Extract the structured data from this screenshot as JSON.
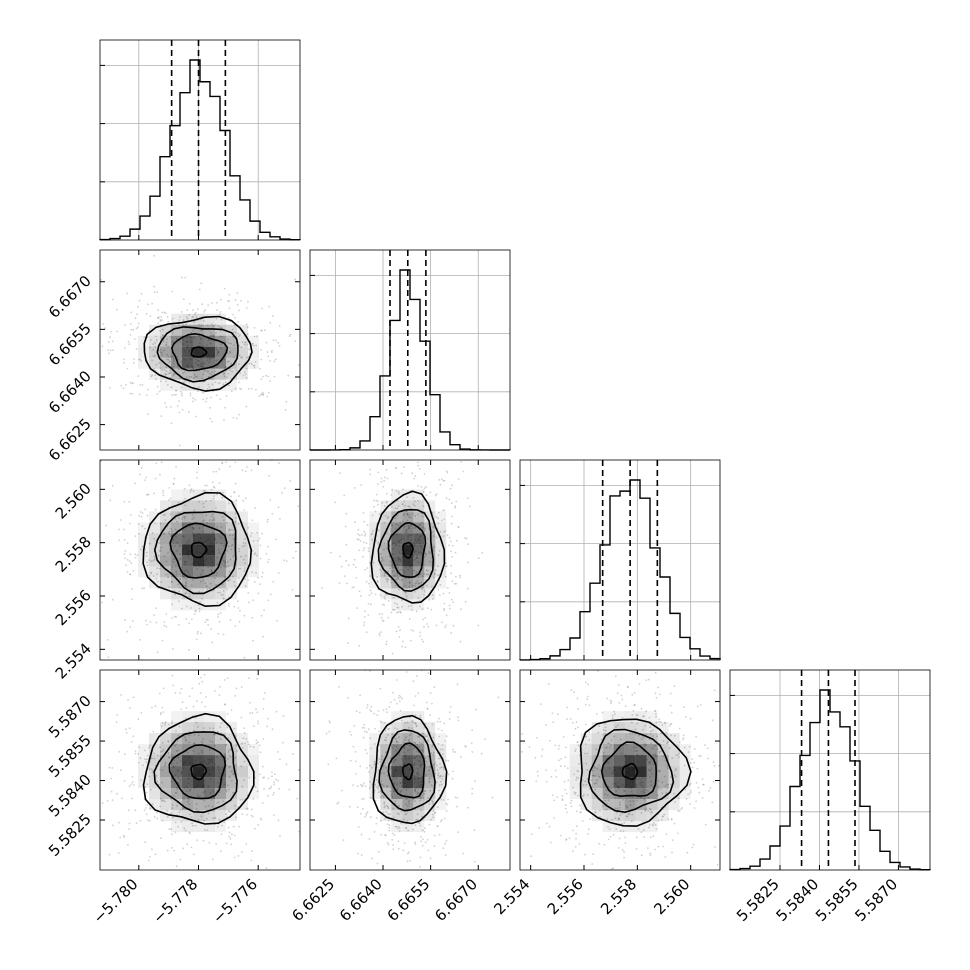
{
  "chart_data": {
    "type": "corner",
    "title": "",
    "parameters": [
      {
        "index": 0,
        "range": [
          -5.7813,
          -5.7746
        ],
        "ticks": [
          -5.78,
          -5.778,
          -5.776
        ],
        "tick_labels": [
          "−5.780",
          "−5.778",
          "−5.776"
        ],
        "quantiles": [
          -5.7789,
          -5.778,
          -5.7771
        ],
        "hist_center": -5.778,
        "hist_sd": 0.0009
      },
      {
        "index": 1,
        "range": [
          6.6617,
          6.668
        ],
        "ticks": [
          6.6625,
          6.664,
          6.6655,
          6.667
        ],
        "tick_labels": [
          "6.6625",
          "6.6640",
          "6.6655",
          "6.6670"
        ],
        "quantiles": [
          6.66422,
          6.66478,
          6.66535
        ],
        "hist_center": 6.66478,
        "hist_sd": 0.00056
      },
      {
        "index": 2,
        "range": [
          2.5536,
          2.5611
        ],
        "ticks": [
          2.554,
          2.556,
          2.558,
          2.56
        ],
        "tick_labels": [
          "2.554",
          "2.556",
          "2.558",
          "2.560"
        ],
        "quantiles": [
          2.5567,
          2.55773,
          2.55875
        ],
        "hist_center": 2.55773,
        "hist_sd": 0.00102
      },
      {
        "index": 3,
        "range": [
          5.5806,
          5.5882
        ],
        "ticks": [
          5.5825,
          5.584,
          5.5855,
          5.587
        ],
        "tick_labels": [
          "5.5825",
          "5.5840",
          "5.5855",
          "5.5870"
        ],
        "quantiles": [
          5.58332,
          5.58434,
          5.58535
        ],
        "hist_center": 5.58434,
        "hist_sd": 0.00102
      }
    ],
    "hist_bins": 20,
    "contour_levels": [
      0.5,
      1.0,
      1.5,
      2.0
    ],
    "colors": {
      "line": "#000000",
      "grid": "#b0b0b0",
      "scatter": "#9a9a9a",
      "density": "#000000"
    },
    "grid": true,
    "legend": "none"
  }
}
